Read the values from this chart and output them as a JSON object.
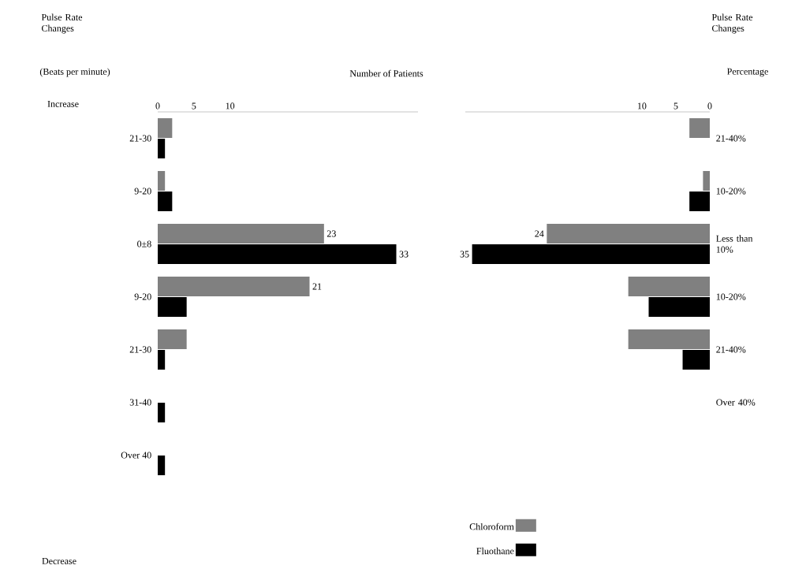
{
  "chart_data": [
    {
      "type": "bar",
      "orientation": "horizontal",
      "xlabel": "Number of Patients",
      "ylabel": "Pulse Rate Changes",
      "categories": [
        "21-30",
        "9-20",
        "0±8",
        "9-20",
        "21-30",
        "31-40",
        "Over 40"
      ],
      "xlim": [
        0,
        36
      ],
      "xticks": [
        0,
        5,
        10
      ],
      "series": [
        {
          "color": "#808080",
          "values": [
            2,
            1,
            23,
            21,
            4,
            0,
            0
          ],
          "value_labels": [
            null,
            null,
            "23",
            "21",
            null,
            null,
            null
          ]
        },
        {
          "color": "#000000",
          "values": [
            1,
            2,
            33,
            4,
            1,
            1,
            1
          ],
          "value_labels": [
            null,
            null,
            "33",
            null,
            null,
            null,
            null
          ]
        }
      ],
      "annotations": [
        "(Beats per minute)",
        "Increase",
        "Decrease"
      ]
    },
    {
      "type": "bar",
      "orientation": "horizontal",
      "ylabel": "Pulse Rate Changes",
      "categories": [
        "21-40%",
        "10-20%",
        "Less than 10%",
        "10-20%",
        "21-40%",
        "Over 40%"
      ],
      "xlim": [
        36,
        0
      ],
      "xticks": [
        0,
        5,
        10
      ],
      "series": [
        {
          "name": "Chloroform",
          "color": "#808080",
          "values": [
            3,
            1,
            24,
            12,
            12,
            0
          ],
          "value_labels": [
            null,
            null,
            "24",
            null,
            null,
            null
          ]
        },
        {
          "name": "Fluothane",
          "color": "#000000",
          "values": [
            0,
            3,
            35,
            9,
            4,
            0
          ],
          "value_labels": [
            null,
            null,
            "35",
            null,
            null,
            null
          ]
        }
      ],
      "legend": "bottom",
      "annotations": [
        "Percentage"
      ]
    }
  ]
}
